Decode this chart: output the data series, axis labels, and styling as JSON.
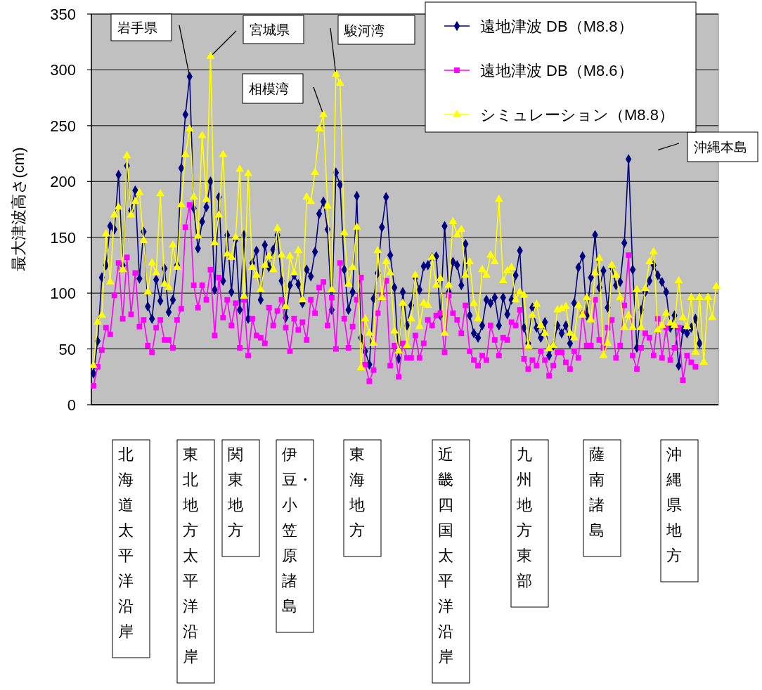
{
  "chart_data": {
    "type": "line",
    "ylabel": "最大津波高さ(cm)",
    "categories": [
      null,
      null,
      null,
      null,
      null,
      null,
      null,
      null,
      null,
      null,
      null,
      null,
      null,
      null,
      null,
      null,
      null,
      null,
      null,
      null,
      null,
      null,
      null,
      null,
      null,
      null,
      null,
      null,
      null,
      null,
      null,
      null,
      null,
      null,
      null,
      null,
      null,
      null,
      null,
      null,
      null,
      null,
      null,
      null,
      null,
      null,
      null,
      null,
      null,
      null,
      null,
      null,
      null,
      null,
      null,
      null,
      null,
      null,
      null,
      null,
      null,
      null,
      null,
      null,
      null,
      null,
      null,
      null,
      null,
      null,
      null,
      null,
      null,
      null,
      null,
      null,
      null,
      null,
      null,
      null,
      null,
      null,
      null,
      null,
      null,
      null,
      null,
      null,
      null,
      null,
      null,
      null,
      null,
      null,
      null,
      null,
      null,
      null,
      null,
      null,
      null,
      null,
      null,
      null,
      null,
      null,
      null,
      null,
      null,
      null,
      null,
      null,
      null,
      null,
      null,
      null,
      null,
      null,
      null,
      null,
      null,
      null,
      null,
      null,
      null,
      null,
      null,
      null,
      null,
      null,
      null,
      null,
      null,
      null,
      null,
      null,
      null,
      null,
      null,
      null,
      null,
      null,
      null,
      null,
      null,
      null,
      null,
      null,
      null,
      null
    ],
    "series": [
      {
        "name": "遠地津波 DB（M8.8）",
        "color": "#000080",
        "marker": "diamond",
        "values": [
          28,
          57,
          114,
          125,
          160,
          157,
          206,
          125,
          214,
          174,
          192,
          113,
          155,
          88,
          77,
          112,
          93,
          122,
          83,
          94,
          125,
          212,
          260,
          294,
          176,
          140,
          164,
          177,
          200,
          103,
          186,
          111,
          152,
          101,
          148,
          85,
          152,
          77,
          127,
          138,
          94,
          143,
          123,
          139,
          152,
          111,
          78,
          107,
          116,
          108,
          91,
          121,
          115,
          137,
          171,
          182,
          157,
          85,
          208,
          197,
          121,
          85,
          101,
          187,
          60,
          48,
          36,
          95,
          118,
          159,
          186,
          134,
          105,
          41,
          101,
          71,
          89,
          114,
          103,
          124,
          125,
          132,
          133,
          80,
          160,
          101,
          128,
          125,
          107,
          144,
          80,
          64,
          60,
          71,
          94,
          91,
          96,
          71,
          96,
          81,
          94,
          116,
          138,
          69,
          55,
          87,
          69,
          60,
          74,
          44,
          53,
          71,
          64,
          71,
          55,
          91,
          123,
          133,
          80,
          114,
          152,
          105,
          120,
          87,
          123,
          107,
          110,
          145,
          220,
          121,
          51,
          85,
          101,
          111,
          125,
          116,
          110,
          101,
          69,
          80,
          35,
          67,
          64,
          69,
          77,
          55,
          null,
          null,
          null,
          null
        ]
      },
      {
        "name": "遠地津波 DB（M8.6）",
        "color": "#ff00ff",
        "marker": "square",
        "values": [
          17,
          34,
          49,
          69,
          63,
          98,
          127,
          77,
          132,
          81,
          118,
          70,
          76,
          53,
          47,
          69,
          76,
          58,
          58,
          51,
          76,
          86,
          159,
          179,
          107,
          87,
          107,
          94,
          121,
          62,
          114,
          78,
          94,
          71,
          91,
          51,
          94,
          44,
          77,
          62,
          60,
          55,
          87,
          71,
          84,
          94,
          69,
          48,
          77,
          67,
          74,
          58,
          94,
          82,
          105,
          110,
          71,
          96,
          50,
          127,
          77,
          51,
          70,
          94,
          114,
          36,
          21,
          31,
          82,
          98,
          111,
          35,
          53,
          25,
          55,
          42,
          42,
          62,
          42,
          55,
          76,
          71,
          80,
          82,
          47,
          98,
          82,
          76,
          64,
          89,
          48,
          40,
          35,
          44,
          40,
          71,
          58,
          44,
          60,
          58,
          74,
          71,
          85,
          41,
          32,
          40,
          35,
          48,
          40,
          26,
          35,
          47,
          47,
          38,
          32,
          48,
          42,
          82,
          53,
          53,
          94,
          58,
          51,
          69,
          76,
          42,
          53,
          89,
          134,
          44,
          32,
          51,
          64,
          60,
          44,
          77,
          42,
          69,
          40,
          51,
          69,
          22,
          44,
          38,
          34,
          null,
          null,
          null,
          null,
          null
        ]
      },
      {
        "name": "シミュレーション（M8.8）",
        "color": "#ffff00",
        "marker": "triangle",
        "values": [
          35,
          74,
          80,
          153,
          110,
          170,
          177,
          121,
          223,
          170,
          182,
          190,
          147,
          101,
          127,
          118,
          189,
          108,
          105,
          143,
          123,
          179,
          224,
          247,
          186,
          151,
          241,
          184,
          312,
          145,
          170,
          224,
          135,
          132,
          150,
          211,
          97,
          207,
          123,
          116,
          103,
          125,
          133,
          121,
          158,
          134,
          88,
          133,
          118,
          138,
          94,
          186,
          182,
          208,
          247,
          260,
          178,
          103,
          296,
          288,
          154,
          108,
          123,
          159,
          33,
          77,
          64,
          55,
          138,
          96,
          128,
          118,
          66,
          48,
          91,
          53,
          77,
          116,
          70,
          91,
          89,
          132,
          107,
          113,
          64,
          107,
          164,
          152,
          157,
          116,
          128,
          91,
          77,
          121,
          116,
          134,
          128,
          184,
          111,
          120,
          123,
          94,
          101,
          98,
          52,
          80,
          90,
          71,
          64,
          50,
          53,
          85,
          86,
          88,
          64,
          60,
          89,
          80,
          96,
          76,
          118,
          131,
          44,
          55,
          125,
          116,
          96,
          69,
          80,
          69,
          103,
          69,
          104,
          128,
          137,
          67,
          71,
          82,
          73,
          71,
          111,
          78,
          70,
          96,
          47,
          96,
          38,
          96,
          78,
          106
        ]
      }
    ],
    "ylim": [
      0,
      350
    ],
    "yticks": [
      0,
      50,
      100,
      150,
      200,
      250,
      300,
      350
    ],
    "grid": "y",
    "legend": "top right",
    "tick_labels": "y",
    "annotations": [
      "岩手県",
      "宮城県",
      "駿河湾",
      "相模湾",
      "沖縄本島",
      "北海道太平洋沿岸",
      "東北地方太平洋沿岸",
      "関東地方",
      "伊豆・小笠原諸島",
      "東海地方",
      "近畿四国太平洋沿岸",
      "九州地方東部",
      "薩南諸島",
      "沖縄県地方"
    ]
  }
}
